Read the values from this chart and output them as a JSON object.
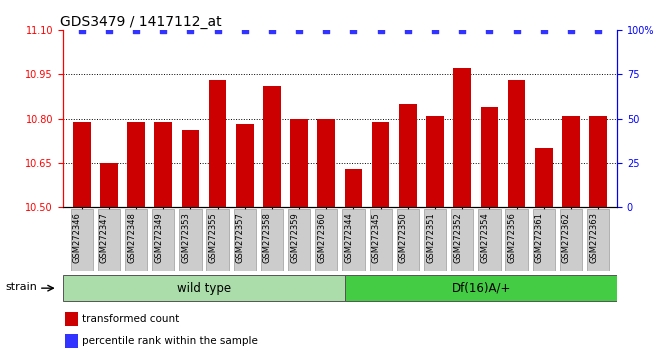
{
  "title": "GDS3479 / 1417112_at",
  "samples": [
    "GSM272346",
    "GSM272347",
    "GSM272348",
    "GSM272349",
    "GSM272353",
    "GSM272355",
    "GSM272357",
    "GSM272358",
    "GSM272359",
    "GSM272360",
    "GSM272344",
    "GSM272345",
    "GSM272350",
    "GSM272351",
    "GSM272352",
    "GSM272354",
    "GSM272356",
    "GSM272361",
    "GSM272362",
    "GSM272363"
  ],
  "bar_values": [
    10.79,
    10.65,
    10.79,
    10.79,
    10.76,
    10.93,
    10.78,
    10.91,
    10.8,
    10.8,
    10.63,
    10.79,
    10.85,
    10.81,
    10.97,
    10.84,
    10.93,
    10.7,
    10.81,
    10.81
  ],
  "percentile_values": [
    100,
    100,
    100,
    100,
    100,
    100,
    100,
    100,
    100,
    100,
    100,
    100,
    100,
    100,
    100,
    100,
    100,
    100,
    100,
    100
  ],
  "bar_color": "#cc0000",
  "dot_color": "#3333ff",
  "ylim_left": [
    10.5,
    11.1
  ],
  "ylim_right": [
    0,
    100
  ],
  "yticks_left": [
    10.5,
    10.65,
    10.8,
    10.95,
    11.1
  ],
  "yticks_right": [
    0,
    25,
    50,
    75,
    100
  ],
  "grid_values": [
    10.65,
    10.8,
    10.95
  ],
  "wild_type_count": 10,
  "group1_label": "wild type",
  "group2_label": "Df(16)A/+",
  "group1_color": "#aaddaa",
  "group2_color": "#44cc44",
  "strain_label": "strain",
  "legend_bar_label": "transformed count",
  "legend_dot_label": "percentile rank within the sample",
  "title_fontsize": 10,
  "tick_fontsize": 7,
  "bar_width": 0.65,
  "xtick_bg_color": "#cccccc"
}
